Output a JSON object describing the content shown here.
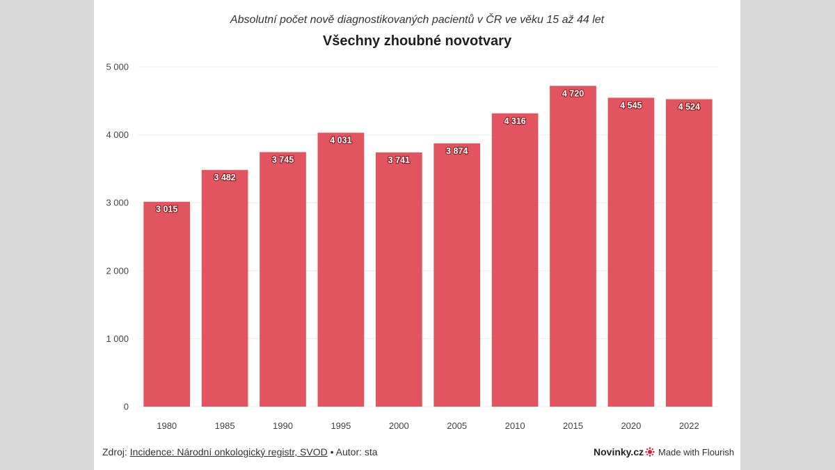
{
  "header": {
    "subtitle": "Absolutní počet nově diagnostikovaných pacientů v ČR ve věku 15 až 44 let",
    "title": "Všechny zhoubné novotvary"
  },
  "footer": {
    "source_prefix": "Zdroj:",
    "source_link": "Incidence: Národní onkologický registr, SVOD",
    "separator": "•",
    "author": "Autor: sta",
    "brand": "Novinky.cz",
    "flourish": "Made with Flourish"
  },
  "colors": {
    "bar": "#e2545f",
    "grid": "#ececec"
  },
  "chart_data": {
    "type": "bar",
    "categories": [
      "1980",
      "1985",
      "1990",
      "1995",
      "2000",
      "2005",
      "2010",
      "2015",
      "2020",
      "2022"
    ],
    "values": [
      3015,
      3482,
      3745,
      4031,
      3741,
      3874,
      4316,
      4720,
      4545,
      4524
    ],
    "value_labels": [
      "3 015",
      "3 482",
      "3 745",
      "4 031",
      "3 741",
      "3 874",
      "4 316",
      "4 720",
      "4 545",
      "4 524"
    ],
    "ylim": [
      0,
      5000
    ],
    "yticks": [
      0,
      1000,
      2000,
      3000,
      4000,
      5000
    ],
    "ytick_labels": [
      "0",
      "1 000",
      "2 000",
      "3 000",
      "4 000",
      "5 000"
    ],
    "grid": true
  }
}
